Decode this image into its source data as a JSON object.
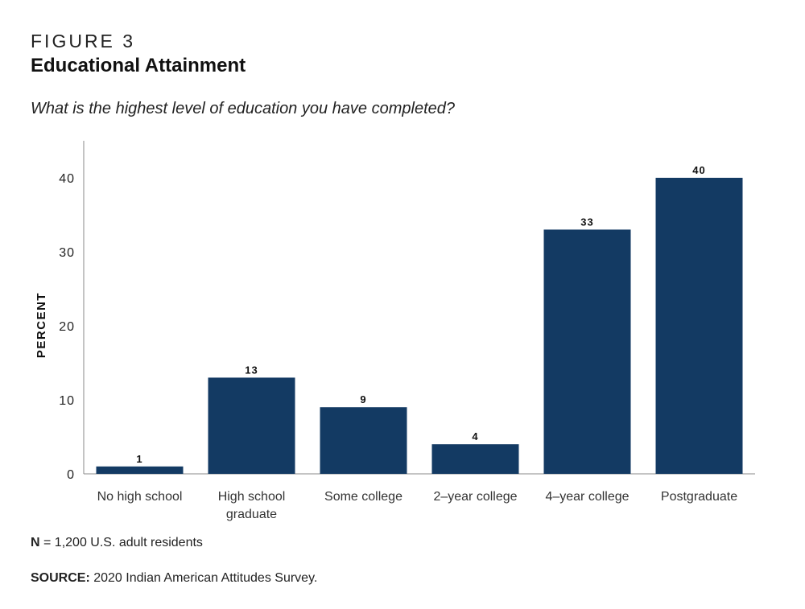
{
  "figure": {
    "label": "FIGURE 3",
    "title": "Educational Attainment",
    "subtitle": "What is the highest level of education you have completed?"
  },
  "chart_data": {
    "type": "bar",
    "categories": [
      [
        "No high school"
      ],
      [
        "High school",
        "graduate"
      ],
      [
        "Some college"
      ],
      [
        "2–year college"
      ],
      [
        "4–year college"
      ],
      [
        "Postgraduate"
      ]
    ],
    "values": [
      1,
      13,
      9,
      4,
      33,
      40
    ],
    "data_labels": [
      "1",
      "13",
      "9",
      "4",
      "33",
      "40"
    ],
    "ylabel": "PERCENT",
    "xlabel": "",
    "ylim": [
      0,
      45
    ],
    "yticks": [
      0,
      10,
      20,
      30,
      40
    ],
    "ytick_labels": [
      "0",
      "10",
      "20",
      "30",
      "40"
    ],
    "grid": false,
    "bar_color": "#133a63"
  },
  "notes": {
    "n_label": "N",
    "n_text": " = 1,200 U.S. adult residents",
    "source_label": "SOURCE:",
    "source_text": " 2020 Indian American Attitudes Survey."
  }
}
